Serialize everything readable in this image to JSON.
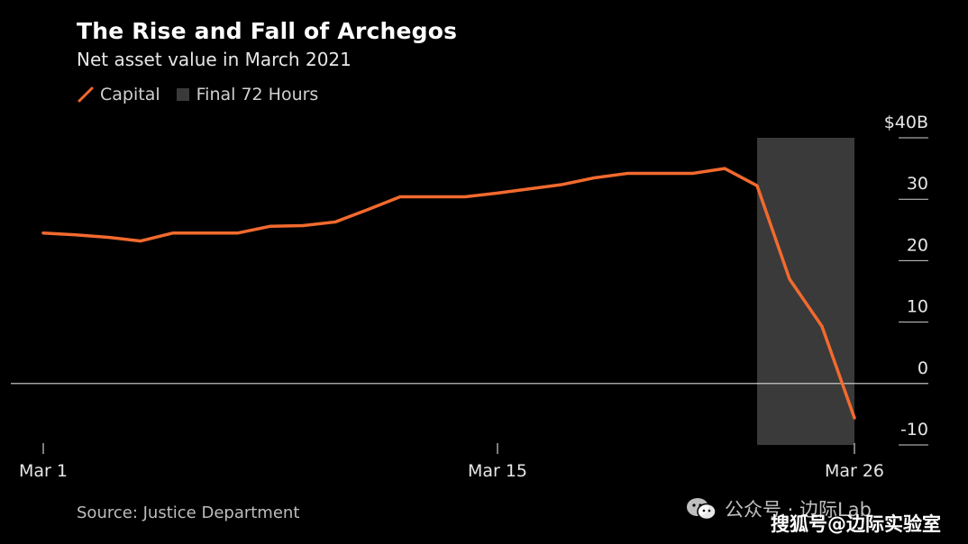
{
  "chart_data": {
    "type": "line",
    "title": "The Rise and Fall of Archegos",
    "subtitle": "Net asset value in March 2021",
    "legend": [
      {
        "label": "Capital",
        "kind": "line",
        "color": "#f26a2e"
      },
      {
        "label": "Final 72 Hours",
        "kind": "box",
        "color": "#3a3a3a"
      }
    ],
    "series": [
      {
        "name": "Capital",
        "x": [
          1,
          2,
          3,
          4,
          5,
          6,
          7,
          8,
          9,
          10,
          11,
          12,
          13,
          14,
          15,
          16,
          17,
          18,
          19,
          20,
          21,
          22,
          23,
          24,
          25,
          26
        ],
        "values": [
          24.5,
          24.2,
          23.8,
          23.2,
          24.5,
          24.5,
          24.5,
          25.6,
          25.7,
          26.3,
          28.3,
          30.4,
          30.4,
          30.4,
          31.0,
          31.7,
          32.4,
          33.5,
          34.2,
          34.2,
          34.2,
          35.0,
          32.2,
          17.0,
          9.3,
          -5.6
        ]
      }
    ],
    "highlight": {
      "label": "Final 72 Hours",
      "x_start": 23,
      "x_end": 26
    },
    "x_ticks": [
      {
        "value": 1,
        "label": "Mar 1"
      },
      {
        "value": 15,
        "label": "Mar 15"
      },
      {
        "value": 26,
        "label": "Mar 26"
      }
    ],
    "y_ticks": [
      {
        "value": 40,
        "label": "$40B"
      },
      {
        "value": 30,
        "label": "30"
      },
      {
        "value": 20,
        "label": "20"
      },
      {
        "value": 10,
        "label": "10"
      },
      {
        "value": 0,
        "label": "0"
      },
      {
        "value": -10,
        "label": "-10"
      }
    ],
    "xlim": [
      1,
      26
    ],
    "ylim": [
      -10,
      40
    ],
    "line_color": "#f26a2e",
    "source": "Source: Justice Department"
  },
  "watermark": {
    "line1": "公众号 · 边际Lab",
    "line2": "搜狐号@边际实验室"
  }
}
